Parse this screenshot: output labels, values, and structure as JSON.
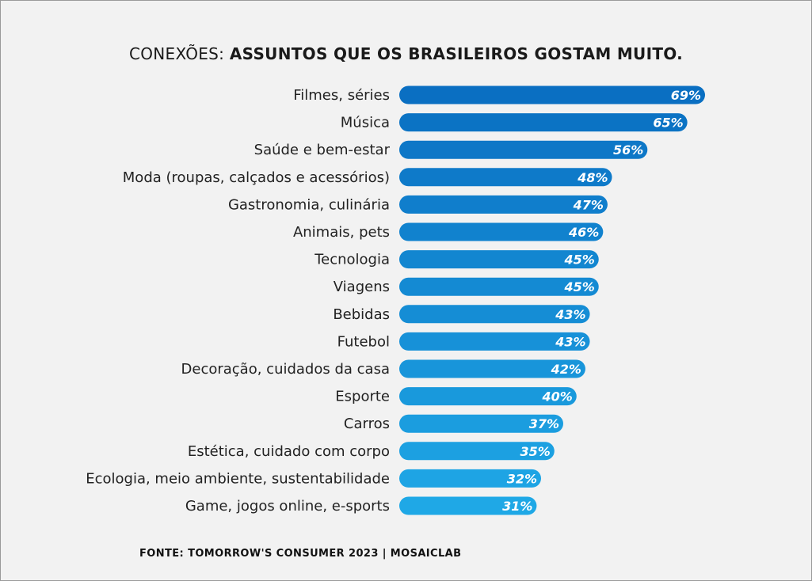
{
  "title_prefix": "CONEXÕES: ",
  "title_bold": "ASSUNTOS QUE OS BRASILEIROS GOSTAM MUITO.",
  "source": "FONTE: TOMORROW'S CONSUMER 2023 | MOSAICLAB",
  "colors": {
    "bar_dark": "#0a6fc2",
    "bar_light": "#1fa8e6",
    "background": "#f2f2f2",
    "label_text": "#222222",
    "value_text": "#ffffff"
  },
  "chart_data": {
    "type": "bar",
    "orientation": "horizontal",
    "categories": [
      "Filmes, séries",
      "Música",
      "Saúde e bem-estar",
      "Moda (roupas, calçados e acessórios)",
      "Gastronomia, culinária",
      "Animais, pets",
      "Tecnologia",
      "Viagens",
      "Bebidas",
      "Futebol",
      "Decoração, cuidados da casa",
      "Esporte",
      "Carros",
      "Estética, cuidado com corpo",
      "Ecologia, meio ambiente, sustentabilidade",
      "Game, jogos online, e-sports"
    ],
    "values": [
      69,
      65,
      56,
      48,
      47,
      46,
      45,
      45,
      43,
      43,
      42,
      40,
      37,
      35,
      32,
      31
    ],
    "value_labels": [
      "69%",
      "65%",
      "56%",
      "48%",
      "47%",
      "46%",
      "45%",
      "45%",
      "43%",
      "43%",
      "42%",
      "40%",
      "37%",
      "35%",
      "32%",
      "31%"
    ],
    "title": "CONEXÕES: ASSUNTOS QUE OS BRASILEIROS GOSTAM MUITO.",
    "xlabel": "",
    "ylabel": "",
    "xlim": [
      0,
      69
    ],
    "grid": false,
    "legend": "none"
  }
}
